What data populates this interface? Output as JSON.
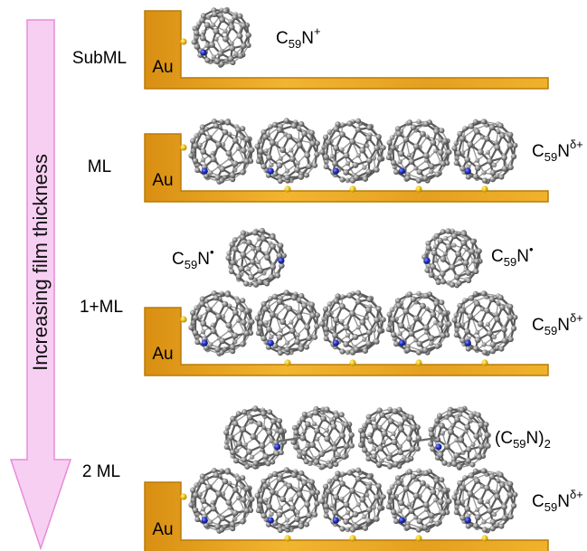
{
  "arrow": {
    "label": "Increasing film thickness"
  },
  "panels": [
    {
      "label": "SubML",
      "substrate": "Au",
      "surface_species": {
        "base": "C",
        "sub": "59",
        "rest": "N",
        "sup": "+"
      },
      "upper_species": [],
      "bottom_atoms": 1,
      "surface_molecule_count": 1
    },
    {
      "label": "ML",
      "substrate": "Au",
      "surface_species": {
        "base": "C",
        "sub": "59",
        "rest": "N",
        "sup": "δ+"
      },
      "upper_species": [],
      "surface_molecule_count": 5
    },
    {
      "label": "1+ML",
      "substrate": "Au",
      "surface_species": {
        "base": "C",
        "sub": "59",
        "rest": "N",
        "sup": "δ+"
      },
      "upper_species": [
        {
          "base": "C",
          "sub": "59",
          "rest": "N",
          "sup": "•"
        },
        {
          "base": "C",
          "sub": "59",
          "rest": "N",
          "sup": "•"
        }
      ],
      "surface_molecule_count": 5
    },
    {
      "label": "2 ML",
      "substrate": "Au",
      "surface_species": {
        "base": "C",
        "sub": "59",
        "rest": "N",
        "sup": "δ+"
      },
      "upper_species": [
        {
          "pre": "(C",
          "sub": "59",
          "rest": "N)",
          "sub2": "2"
        }
      ],
      "surface_molecule_count": 5
    }
  ],
  "colors": {
    "gold": "#e9a61c",
    "gold_dark": "#b97b08",
    "arrow_fill": "#f7cff3",
    "arrow_stroke": "#e98bd8",
    "carbon": "#8c8c8c",
    "nitrogen": "#2433c6",
    "sulfur": "#f0c418"
  }
}
